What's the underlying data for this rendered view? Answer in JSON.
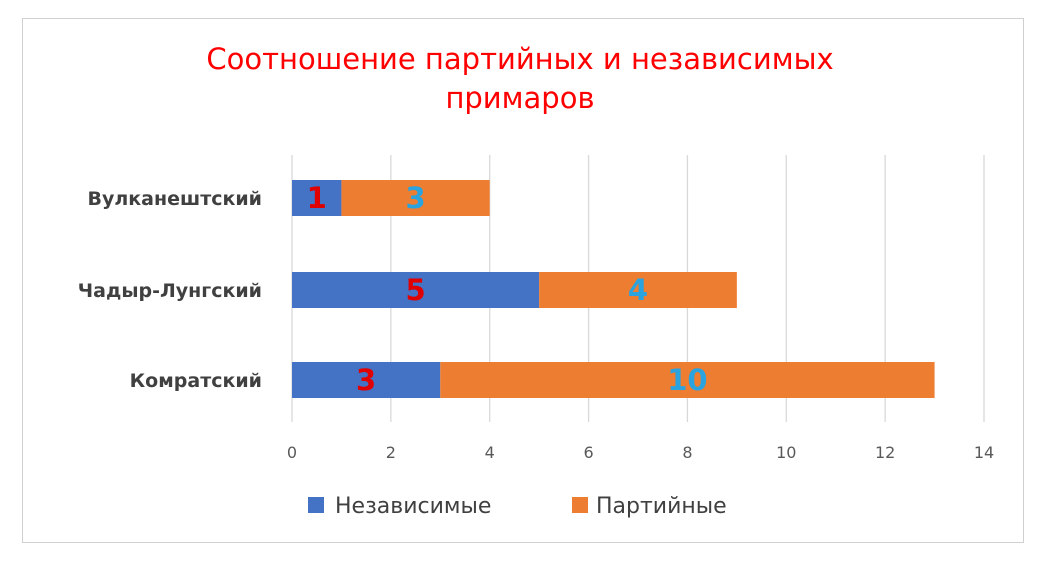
{
  "chart_data": {
    "type": "bar",
    "orientation": "horizontal",
    "stacked": true,
    "title": "Соотношение партийных и независимых примаров",
    "categories": [
      "Вулканештский",
      "Чадыр-Лунгский",
      "Комратский"
    ],
    "series": [
      {
        "name": "Независимые",
        "values": [
          1,
          5,
          3
        ],
        "color": "#4472c4",
        "label_color": "#e00000"
      },
      {
        "name": "Партийные",
        "values": [
          3,
          4,
          10
        ],
        "color": "#ed7d31",
        "label_color": "#2aa3df"
      }
    ],
    "xlim": [
      0,
      14
    ],
    "xticks": [
      0,
      2,
      4,
      6,
      8,
      10,
      12,
      14
    ],
    "grid": "vertical",
    "legend": "bottom",
    "xlabel": "",
    "ylabel": ""
  }
}
